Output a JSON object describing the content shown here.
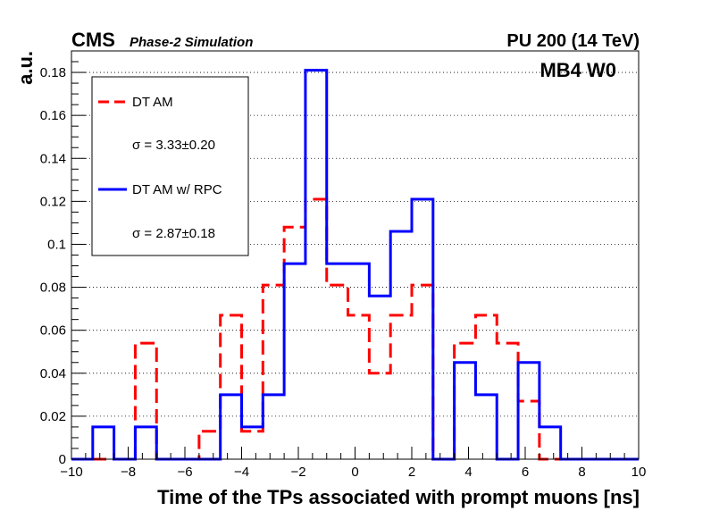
{
  "chart_data": {
    "type": "histogram-step",
    "header_left_main": "CMS",
    "header_left_sub": "Phase-2 Simulation",
    "header_right": "PU 200 (14 TeV)",
    "annotation": "MB4 W0",
    "xlabel": "Time of the TPs associated with prompt muons [ns]",
    "ylabel": "a.u.",
    "xlim": [
      -10,
      10
    ],
    "ylim": [
      0,
      0.19
    ],
    "grid": "horizontal-dotted",
    "legend_position": "top-left",
    "x_ticks": [
      -10,
      -8,
      -6,
      -4,
      -2,
      0,
      2,
      4,
      6,
      8,
      10
    ],
    "y_ticks": [
      0,
      0.02,
      0.04,
      0.06,
      0.08,
      0.1,
      0.12,
      0.14,
      0.16,
      0.18
    ],
    "x_tick_labels": [
      "−10",
      "−8",
      "−6",
      "−4",
      "−2",
      "0",
      "2",
      "4",
      "6",
      "8",
      "10"
    ],
    "y_tick_labels": [
      "0",
      "0.02",
      "0.04",
      "0.06",
      "0.08",
      "0.1",
      "0.12",
      "0.14",
      "0.16",
      "0.18"
    ],
    "bin_edges": [
      -10,
      -9.25,
      -8.5,
      -7.75,
      -7,
      -6.25,
      -5.5,
      -4.75,
      -4,
      -3.25,
      -2.5,
      -1.75,
      -1,
      -0.25,
      0.5,
      1.25,
      2,
      2.75,
      3.5,
      4.25,
      5,
      5.75,
      6.5,
      7.25,
      8,
      8.75,
      9.5,
      10
    ],
    "series": [
      {
        "name": "DT AM",
        "sigma_text": "σ = 3.33±0.20",
        "color": "#ff0000",
        "style": "dashed",
        "values": [
          0,
          0,
          0,
          0.054,
          0,
          0,
          0.013,
          0.067,
          0.013,
          0.081,
          0.108,
          0.121,
          0.081,
          0.067,
          0.04,
          0.067,
          0.081,
          0,
          0.054,
          0.067,
          0.054,
          0.027,
          0,
          0,
          0,
          0,
          0
        ]
      },
      {
        "name": "DT AM w/ RPC",
        "sigma_text": "σ = 2.87±0.18",
        "color": "#0000ff",
        "style": "solid",
        "values": [
          0,
          0.015,
          0,
          0.015,
          0,
          0,
          0,
          0.03,
          0.015,
          0.03,
          0.091,
          0.181,
          0.091,
          0.091,
          0.076,
          0.106,
          0.121,
          0,
          0.045,
          0.03,
          0,
          0.045,
          0.015,
          0,
          0,
          0,
          0
        ]
      }
    ]
  }
}
